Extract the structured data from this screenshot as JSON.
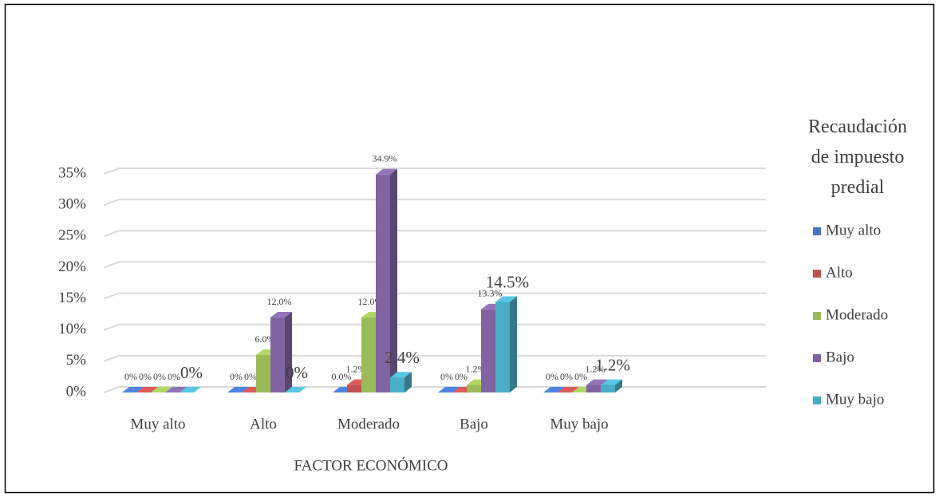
{
  "chart_data": {
    "type": "bar3d",
    "x_label": "FACTOR ECONÓMICO",
    "legend_title": "Recaudación de impuesto predial",
    "legend_position": "right",
    "categories": [
      "Muy alto",
      "Alto",
      "Moderado",
      "Bajo",
      "Muy bajo"
    ],
    "series": [
      {
        "name": "Muy alto",
        "color": "#4472c4",
        "values": [
          0,
          0,
          0,
          0,
          0
        ],
        "value_labels": [
          "0%",
          "0%",
          "0.0%",
          "0%",
          "0%"
        ]
      },
      {
        "name": "Alto",
        "color": "#c0504d",
        "values": [
          0,
          0,
          1.2,
          0,
          0
        ],
        "value_labels": [
          "0%",
          "0%",
          "1.2%",
          "0%",
          "0%"
        ]
      },
      {
        "name": "Moderado",
        "color": "#9bbb59",
        "values": [
          0,
          6.0,
          12.0,
          1.2,
          0
        ],
        "value_labels": [
          "0%",
          "6.0%",
          "12.0%",
          "1.2%",
          "0%"
        ]
      },
      {
        "name": "Bajo",
        "color": "#8064a2",
        "values": [
          0,
          12.0,
          34.9,
          13.3,
          1.2
        ],
        "value_labels": [
          "0%",
          "12.0%",
          "34.9%",
          "13.3%",
          "1.2%"
        ]
      },
      {
        "name": "Muy bajo",
        "color": "#4bacc6",
        "values": [
          0,
          0,
          2.4,
          14.5,
          1.2
        ],
        "value_labels": [
          "0%",
          "0%",
          "2.4%",
          "14.5%",
          "1.2%"
        ]
      }
    ],
    "ylim": [
      0,
      35
    ],
    "yticks": [
      {
        "value": 0,
        "label": "0%"
      },
      {
        "value": 5,
        "label": "5%"
      },
      {
        "value": 10,
        "label": "10%"
      },
      {
        "value": 15,
        "label": "15%"
      },
      {
        "value": 20,
        "label": "20%"
      },
      {
        "value": 25,
        "label": "25%"
      },
      {
        "value": 30,
        "label": "30%"
      },
      {
        "value": 35,
        "label": "35%"
      }
    ],
    "grid": true
  }
}
